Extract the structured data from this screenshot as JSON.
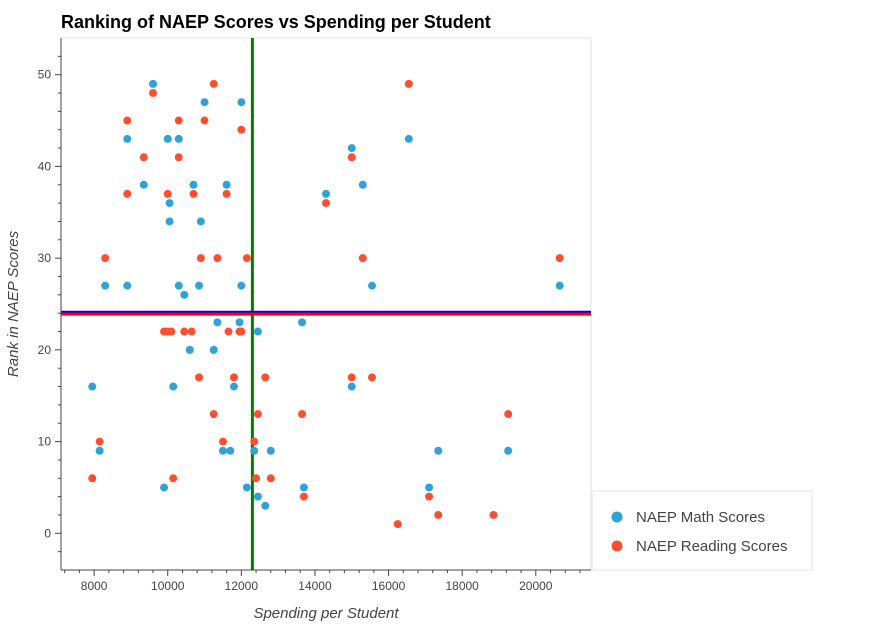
{
  "chart_data": {
    "type": "scatter",
    "title": "Ranking of NAEP Scores vs Spending per Student",
    "xlabel": "Spending per Student",
    "ylabel": "Rank in NAEP Scores",
    "xlim": [
      7100,
      21500
    ],
    "ylim": [
      -4,
      54
    ],
    "xticks": [
      8000,
      10000,
      12000,
      14000,
      16000,
      18000,
      20000
    ],
    "yticks": [
      0,
      10,
      20,
      30,
      40,
      50
    ],
    "grid": false,
    "legend_position": "bottom-right-outside",
    "series": [
      {
        "name": "NAEP Math Scores",
        "color": "#30a2da",
        "points": [
          [
            7950,
            16
          ],
          [
            8150,
            9
          ],
          [
            8300,
            27
          ],
          [
            8900,
            43
          ],
          [
            8900,
            27
          ],
          [
            9350,
            38
          ],
          [
            9600,
            49
          ],
          [
            9900,
            5
          ],
          [
            10000,
            43
          ],
          [
            10050,
            36
          ],
          [
            10050,
            34
          ],
          [
            10150,
            16
          ],
          [
            10300,
            43
          ],
          [
            10300,
            27
          ],
          [
            10450,
            26
          ],
          [
            10600,
            20
          ],
          [
            10700,
            38
          ],
          [
            10850,
            27
          ],
          [
            10900,
            34
          ],
          [
            11000,
            47
          ],
          [
            11250,
            20
          ],
          [
            11350,
            23
          ],
          [
            11500,
            9
          ],
          [
            11600,
            38
          ],
          [
            11700,
            9
          ],
          [
            11800,
            16
          ],
          [
            11950,
            23
          ],
          [
            12000,
            47
          ],
          [
            12000,
            27
          ],
          [
            12150,
            5
          ],
          [
            12350,
            9
          ],
          [
            12450,
            4
          ],
          [
            12450,
            22
          ],
          [
            12650,
            3
          ],
          [
            12800,
            9
          ],
          [
            13650,
            23
          ],
          [
            13700,
            5
          ],
          [
            14300,
            37
          ],
          [
            15000,
            42
          ],
          [
            15000,
            16
          ],
          [
            15300,
            38
          ],
          [
            15550,
            27
          ],
          [
            16550,
            43
          ],
          [
            17100,
            5
          ],
          [
            17350,
            9
          ],
          [
            19250,
            9
          ],
          [
            20650,
            27
          ]
        ]
      },
      {
        "name": "NAEP Reading Scores",
        "color": "#fc4f30",
        "points": [
          [
            7950,
            6
          ],
          [
            8150,
            10
          ],
          [
            8300,
            30
          ],
          [
            8900,
            45
          ],
          [
            8900,
            37
          ],
          [
            9350,
            41
          ],
          [
            9600,
            48
          ],
          [
            9900,
            22
          ],
          [
            10000,
            37
          ],
          [
            10000,
            22
          ],
          [
            10100,
            22
          ],
          [
            10150,
            6
          ],
          [
            10300,
            45
          ],
          [
            10300,
            41
          ],
          [
            10450,
            22
          ],
          [
            10650,
            22
          ],
          [
            10700,
            37
          ],
          [
            10850,
            17
          ],
          [
            10900,
            30
          ],
          [
            11000,
            45
          ],
          [
            11250,
            13
          ],
          [
            11250,
            49
          ],
          [
            11350,
            30
          ],
          [
            11500,
            10
          ],
          [
            11600,
            37
          ],
          [
            11650,
            22
          ],
          [
            11800,
            17
          ],
          [
            11950,
            22
          ],
          [
            12000,
            44
          ],
          [
            12000,
            22
          ],
          [
            12150,
            30
          ],
          [
            12350,
            10
          ],
          [
            12400,
            6
          ],
          [
            12450,
            13
          ],
          [
            12650,
            17
          ],
          [
            12800,
            6
          ],
          [
            13650,
            13
          ],
          [
            13700,
            4
          ],
          [
            14300,
            36
          ],
          [
            15000,
            41
          ],
          [
            15000,
            17
          ],
          [
            15300,
            30
          ],
          [
            15550,
            17
          ],
          [
            16250,
            1
          ],
          [
            16550,
            49
          ],
          [
            17100,
            4
          ],
          [
            17350,
            2
          ],
          [
            18850,
            2
          ],
          [
            19250,
            13
          ],
          [
            20650,
            30
          ]
        ]
      }
    ],
    "reference_lines": [
      {
        "orientation": "vertical",
        "value": 12300,
        "color": "#008000"
      },
      {
        "orientation": "horizontal",
        "value": 24.1,
        "color": "#0000ff"
      },
      {
        "orientation": "horizontal",
        "value": 23.9,
        "color": "#ff0000"
      }
    ]
  }
}
